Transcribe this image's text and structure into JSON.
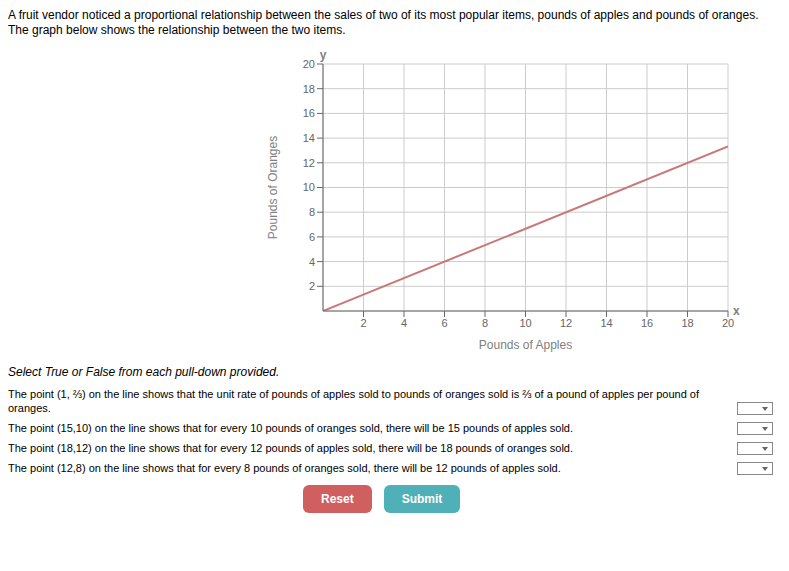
{
  "chart_data": {
    "type": "line",
    "title": "A fruit vendor noticed a proportional relationship between the sales of two of its most popular items, pounds of apples and pounds of oranges. The graph below shows the relationship between the two items.",
    "xlabel": "Pounds of Apples",
    "ylabel": "Pounds of Oranges",
    "x": [
      0,
      20
    ],
    "values": [
      0,
      13.33
    ],
    "color": "#cc7777",
    "xlim": [
      0,
      20
    ],
    "ylim": [
      0,
      20
    ],
    "xticks": [
      2,
      4,
      6,
      8,
      10,
      12,
      14,
      16,
      18,
      20
    ],
    "yticks": [
      2,
      4,
      6,
      8,
      10,
      12,
      14,
      16,
      18,
      20
    ],
    "grid": true,
    "annotations": [
      {
        "text": "y"
      },
      {
        "text": "x"
      },
      {
        "text": "Select True or False from each pull-down provided."
      },
      {
        "text": "The point (1, ⅔) on the line shows that the unit rate of pounds of apples sold to pounds of oranges sold is ⅔ of a pound of apples per pound of oranges."
      },
      {
        "text": "The point (15,10) on the line shows that for every 10 pounds of oranges sold, there will be 15 pounds of apples sold."
      },
      {
        "text": "The point (18,12) on the line shows that for every 12 pounds of apples sold, there will be 18 pounds of oranges sold."
      },
      {
        "text": "The point (12,8) on the line shows that for every 8 pounds of oranges sold, there will be 12 pounds of apples sold."
      },
      {
        "text": "Reset",
        "color": "#d06060"
      },
      {
        "text": "Submit",
        "color": "#50b0b8"
      }
    ]
  }
}
